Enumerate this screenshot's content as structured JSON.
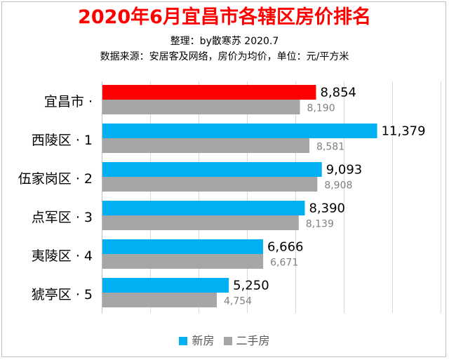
{
  "chart_data": {
    "type": "bar",
    "orientation": "horizontal",
    "title": "2020年6月宜昌市各辖区房价排名",
    "subtitle_lines": [
      "整理：by散寒苏  2020.7",
      "数据来源：安居客及网络，房价为均价，单位：元/平方米"
    ],
    "categories": [
      "宜昌市 ·",
      "西陵区 · 1",
      "伍家岗区 · 2",
      "点军区 · 3",
      "夷陵区 · 4",
      "猇亭区 · 5"
    ],
    "series": [
      {
        "name": "新房",
        "values": [
          8854,
          11379,
          9093,
          8390,
          6666,
          5250
        ],
        "labels": [
          "8,854",
          "11,379",
          "9,093",
          "8,390",
          "6,666",
          "5,250"
        ]
      },
      {
        "name": "二手房",
        "values": [
          8190,
          8581,
          8908,
          8139,
          6671,
          4754
        ],
        "labels": [
          "8,190",
          "8,581",
          "8,908",
          "8,139",
          "6,671",
          "4,754"
        ]
      }
    ],
    "highlight_category_index": 0,
    "xlim": [
      0,
      14000
    ],
    "grid": true,
    "legend": "bottom",
    "colors": {
      "new": "#00b0f0",
      "highlight": "#ff0000",
      "second": "#a6a6a6",
      "title": "#ff0000",
      "grid": "#d9d9d9"
    }
  }
}
